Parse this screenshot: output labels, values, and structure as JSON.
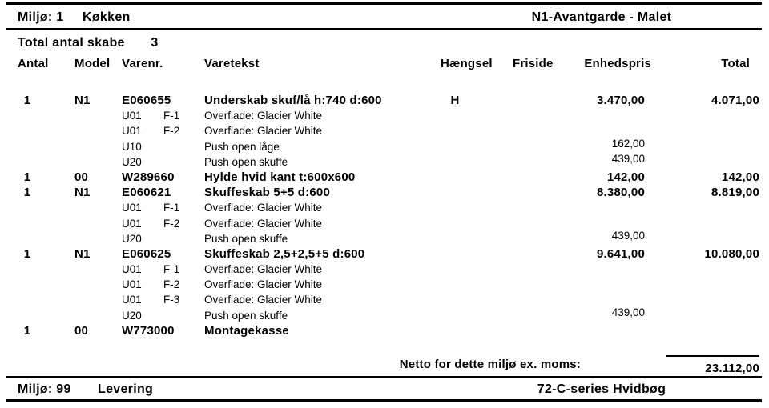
{
  "header": {
    "env": "Miljø: 1",
    "env_name": "Køkken",
    "series": "N1-Avantgarde - Malet"
  },
  "summary": {
    "label": "Total antal skabe",
    "count": "3"
  },
  "columns": {
    "antal": "Antal",
    "model": "Model",
    "varenr": "Varenr.",
    "varetekst": "Varetekst",
    "haengsel": "Hængsel",
    "friside": "Friside",
    "enhedspris": "Enhedspris",
    "total": "Total"
  },
  "rows": [
    {
      "type": "item",
      "antal": "1",
      "model": "N1",
      "code": "E060655",
      "fcode": "",
      "text": "Underskab skuf/lå h:740 d:600",
      "haengsel": "H",
      "enhedspris": "3.470,00",
      "total": "4.071,00"
    },
    {
      "type": "sub",
      "antal": "",
      "model": "",
      "code": "U01",
      "fcode": "F-1",
      "text": "Overflade: Glacier White",
      "haengsel": "",
      "enhedspris": "",
      "total": ""
    },
    {
      "type": "sub",
      "antal": "",
      "model": "",
      "code": "U01",
      "fcode": "F-2",
      "text": "Overflade: Glacier White",
      "haengsel": "",
      "enhedspris": "",
      "total": ""
    },
    {
      "type": "sub",
      "antal": "",
      "model": "",
      "code": "U10",
      "fcode": "",
      "text": "Push open låge",
      "haengsel": "",
      "enhedspris": "162,00",
      "total": ""
    },
    {
      "type": "sub",
      "antal": "",
      "model": "",
      "code": "U20",
      "fcode": "",
      "text": "Push open skuffe",
      "haengsel": "",
      "enhedspris": "439,00",
      "total": ""
    },
    {
      "type": "item",
      "antal": "1",
      "model": "00",
      "code": "W289660",
      "fcode": "",
      "text": "Hylde hvid kant t:600x600",
      "haengsel": "",
      "enhedspris": "142,00",
      "total": "142,00"
    },
    {
      "type": "item",
      "antal": "1",
      "model": "N1",
      "code": "E060621",
      "fcode": "",
      "text": "Skuffeskab 5+5 d:600",
      "haengsel": "",
      "enhedspris": "8.380,00",
      "total": "8.819,00"
    },
    {
      "type": "sub",
      "antal": "",
      "model": "",
      "code": "U01",
      "fcode": "F-1",
      "text": "Overflade: Glacier White",
      "haengsel": "",
      "enhedspris": "",
      "total": ""
    },
    {
      "type": "sub",
      "antal": "",
      "model": "",
      "code": "U01",
      "fcode": "F-2",
      "text": "Overflade: Glacier White",
      "haengsel": "",
      "enhedspris": "",
      "total": ""
    },
    {
      "type": "sub",
      "antal": "",
      "model": "",
      "code": "U20",
      "fcode": "",
      "text": "Push open skuffe",
      "haengsel": "",
      "enhedspris": "439,00",
      "total": ""
    },
    {
      "type": "item",
      "antal": "1",
      "model": "N1",
      "code": "E060625",
      "fcode": "",
      "text": "Skuffeskab 2,5+2,5+5 d:600",
      "haengsel": "",
      "enhedspris": "9.641,00",
      "total": "10.080,00"
    },
    {
      "type": "sub",
      "antal": "",
      "model": "",
      "code": "U01",
      "fcode": "F-1",
      "text": "Overflade: Glacier White",
      "haengsel": "",
      "enhedspris": "",
      "total": ""
    },
    {
      "type": "sub",
      "antal": "",
      "model": "",
      "code": "U01",
      "fcode": "F-2",
      "text": "Overflade: Glacier White",
      "haengsel": "",
      "enhedspris": "",
      "total": ""
    },
    {
      "type": "sub",
      "antal": "",
      "model": "",
      "code": "U01",
      "fcode": "F-3",
      "text": "Overflade: Glacier White",
      "haengsel": "",
      "enhedspris": "",
      "total": ""
    },
    {
      "type": "sub",
      "antal": "",
      "model": "",
      "code": "U20",
      "fcode": "",
      "text": "Push open skuffe",
      "haengsel": "",
      "enhedspris": "439,00",
      "total": ""
    },
    {
      "type": "item",
      "antal": "1",
      "model": "00",
      "code": "W773000",
      "fcode": "",
      "text": "Montagekasse",
      "haengsel": "",
      "enhedspris": "",
      "total": ""
    }
  ],
  "net": {
    "label": "Netto for dette miljø ex. moms:",
    "value": "23.112,00"
  },
  "footer": {
    "env": "Miljø: 99",
    "env_name": "Levering",
    "series": "72-C-series Hvidbøg"
  },
  "colors": {
    "text": "#000000",
    "background": "#ffffff",
    "rule": "#000000"
  }
}
